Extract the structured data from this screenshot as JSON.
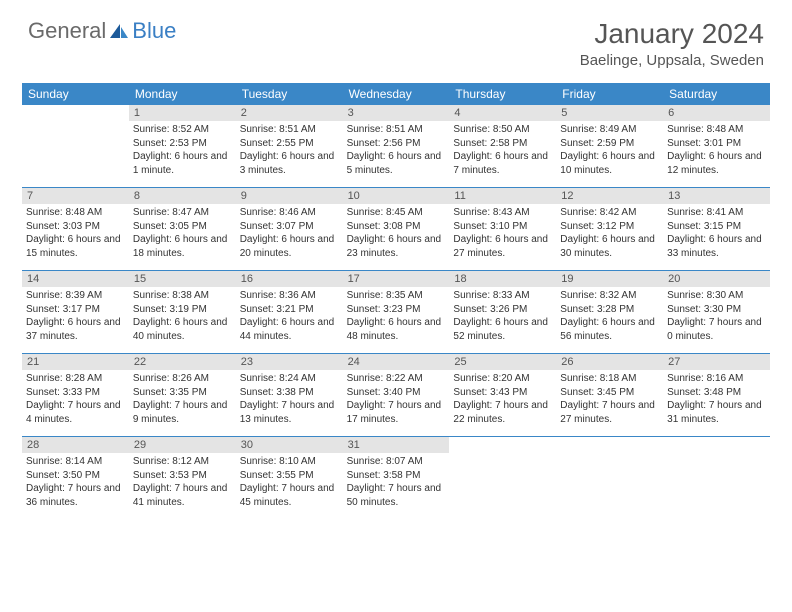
{
  "logo": {
    "text1": "General",
    "text2": "Blue"
  },
  "title": "January 2024",
  "location": "Baelinge, Uppsala, Sweden",
  "colors": {
    "header_bg": "#3a87c7",
    "daynum_bg": "#e4e4e4",
    "text_dark": "#333333",
    "text_gray": "#555555",
    "logo_gray": "#6a6a6a",
    "logo_blue": "#3a7fc4"
  },
  "weekdays": [
    "Sunday",
    "Monday",
    "Tuesday",
    "Wednesday",
    "Thursday",
    "Friday",
    "Saturday"
  ],
  "weeks": [
    [
      null,
      {
        "n": "1",
        "sr": "8:52 AM",
        "ss": "2:53 PM",
        "dl": "6 hours and 1 minute."
      },
      {
        "n": "2",
        "sr": "8:51 AM",
        "ss": "2:55 PM",
        "dl": "6 hours and 3 minutes."
      },
      {
        "n": "3",
        "sr": "8:51 AM",
        "ss": "2:56 PM",
        "dl": "6 hours and 5 minutes."
      },
      {
        "n": "4",
        "sr": "8:50 AM",
        "ss": "2:58 PM",
        "dl": "6 hours and 7 minutes."
      },
      {
        "n": "5",
        "sr": "8:49 AM",
        "ss": "2:59 PM",
        "dl": "6 hours and 10 minutes."
      },
      {
        "n": "6",
        "sr": "8:48 AM",
        "ss": "3:01 PM",
        "dl": "6 hours and 12 minutes."
      }
    ],
    [
      {
        "n": "7",
        "sr": "8:48 AM",
        "ss": "3:03 PM",
        "dl": "6 hours and 15 minutes."
      },
      {
        "n": "8",
        "sr": "8:47 AM",
        "ss": "3:05 PM",
        "dl": "6 hours and 18 minutes."
      },
      {
        "n": "9",
        "sr": "8:46 AM",
        "ss": "3:07 PM",
        "dl": "6 hours and 20 minutes."
      },
      {
        "n": "10",
        "sr": "8:45 AM",
        "ss": "3:08 PM",
        "dl": "6 hours and 23 minutes."
      },
      {
        "n": "11",
        "sr": "8:43 AM",
        "ss": "3:10 PM",
        "dl": "6 hours and 27 minutes."
      },
      {
        "n": "12",
        "sr": "8:42 AM",
        "ss": "3:12 PM",
        "dl": "6 hours and 30 minutes."
      },
      {
        "n": "13",
        "sr": "8:41 AM",
        "ss": "3:15 PM",
        "dl": "6 hours and 33 minutes."
      }
    ],
    [
      {
        "n": "14",
        "sr": "8:39 AM",
        "ss": "3:17 PM",
        "dl": "6 hours and 37 minutes."
      },
      {
        "n": "15",
        "sr": "8:38 AM",
        "ss": "3:19 PM",
        "dl": "6 hours and 40 minutes."
      },
      {
        "n": "16",
        "sr": "8:36 AM",
        "ss": "3:21 PM",
        "dl": "6 hours and 44 minutes."
      },
      {
        "n": "17",
        "sr": "8:35 AM",
        "ss": "3:23 PM",
        "dl": "6 hours and 48 minutes."
      },
      {
        "n": "18",
        "sr": "8:33 AM",
        "ss": "3:26 PM",
        "dl": "6 hours and 52 minutes."
      },
      {
        "n": "19",
        "sr": "8:32 AM",
        "ss": "3:28 PM",
        "dl": "6 hours and 56 minutes."
      },
      {
        "n": "20",
        "sr": "8:30 AM",
        "ss": "3:30 PM",
        "dl": "7 hours and 0 minutes."
      }
    ],
    [
      {
        "n": "21",
        "sr": "8:28 AM",
        "ss": "3:33 PM",
        "dl": "7 hours and 4 minutes."
      },
      {
        "n": "22",
        "sr": "8:26 AM",
        "ss": "3:35 PM",
        "dl": "7 hours and 9 minutes."
      },
      {
        "n": "23",
        "sr": "8:24 AM",
        "ss": "3:38 PM",
        "dl": "7 hours and 13 minutes."
      },
      {
        "n": "24",
        "sr": "8:22 AM",
        "ss": "3:40 PM",
        "dl": "7 hours and 17 minutes."
      },
      {
        "n": "25",
        "sr": "8:20 AM",
        "ss": "3:43 PM",
        "dl": "7 hours and 22 minutes."
      },
      {
        "n": "26",
        "sr": "8:18 AM",
        "ss": "3:45 PM",
        "dl": "7 hours and 27 minutes."
      },
      {
        "n": "27",
        "sr": "8:16 AM",
        "ss": "3:48 PM",
        "dl": "7 hours and 31 minutes."
      }
    ],
    [
      {
        "n": "28",
        "sr": "8:14 AM",
        "ss": "3:50 PM",
        "dl": "7 hours and 36 minutes."
      },
      {
        "n": "29",
        "sr": "8:12 AM",
        "ss": "3:53 PM",
        "dl": "7 hours and 41 minutes."
      },
      {
        "n": "30",
        "sr": "8:10 AM",
        "ss": "3:55 PM",
        "dl": "7 hours and 45 minutes."
      },
      {
        "n": "31",
        "sr": "8:07 AM",
        "ss": "3:58 PM",
        "dl": "7 hours and 50 minutes."
      },
      null,
      null,
      null
    ]
  ],
  "labels": {
    "sunrise": "Sunrise:",
    "sunset": "Sunset:",
    "daylight": "Daylight:"
  }
}
